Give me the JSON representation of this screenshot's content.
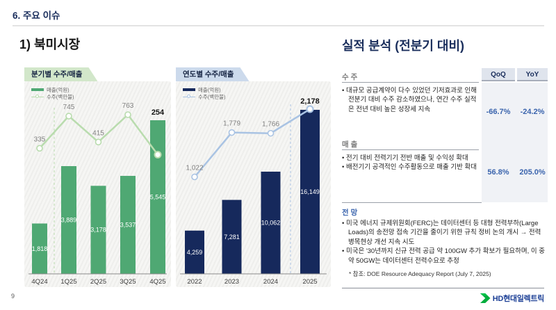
{
  "page": {
    "header_title": "6. 주요 이슈",
    "section_title": "1) 북미시장",
    "page_number": "9",
    "logo_text": "HD현대일렉트릭"
  },
  "colors": {
    "navy_heading": "#1a2e5c",
    "green_bar": "#4fa873",
    "green_line": "#b9dcae",
    "navy_bar": "#16295c",
    "blue_line": "#a9c3e3",
    "accent_blue": "#3a64ad",
    "tab_green_bg": "#d2e7ca",
    "tab_blue_bg": "#ccdaec",
    "logo_green": "#00ad3c",
    "logo_navy": "#1d4096"
  },
  "chart_data": [
    {
      "type": "bar+line",
      "title": "분기별 수주/매출",
      "categories": [
        "4Q24",
        "1Q25",
        "2Q25",
        "3Q25",
        "4Q25"
      ],
      "series": [
        {
          "name": "매출(억원)",
          "type": "bar",
          "values": [
            1818,
            3889,
            3178,
            3537,
            5545
          ],
          "labels": [
            "1,818",
            "3,889",
            "3,178",
            "3,537",
            "5,545"
          ],
          "color": "#4fa873"
        },
        {
          "name": "수주(백만불)",
          "type": "line",
          "values": [
            335,
            745,
            415,
            763,
            254
          ],
          "labels": [
            "335",
            "745",
            "415",
            "763",
            "254"
          ],
          "color": "#b9dcae",
          "marker": "open-circle"
        }
      ],
      "legend_position": "top-left",
      "grid": false,
      "annotations": {
        "dashed_divider_between": [
          "4Q24",
          "1Q25"
        ],
        "last_line_label_bold": true
      }
    },
    {
      "type": "bar+line",
      "title": "연도별 수주/매출",
      "categories": [
        "2022",
        "2023",
        "2024",
        "2025"
      ],
      "series": [
        {
          "name": "매출(억원)",
          "type": "bar",
          "values": [
            4259,
            7281,
            10062,
            16149
          ],
          "labels": [
            "4,259",
            "7,281",
            "10,062",
            "16,149"
          ],
          "color": "#16295c"
        },
        {
          "name": "수주(백만불)",
          "type": "line",
          "values": [
            1022,
            1779,
            1766,
            2178
          ],
          "labels": [
            "1,022",
            "1,779",
            "1,766",
            "2,178"
          ],
          "color": "#a9c3e3",
          "marker": "open-circle"
        }
      ],
      "legend_position": "top-left",
      "grid": false,
      "annotations": {
        "dashed_divider_between": [
          "2024",
          "2025"
        ],
        "last_line_label_bold": true
      }
    }
  ],
  "analysis": {
    "title": "실적 분석 (전분기 대비)",
    "table_headers": [
      "QoQ",
      "YoY"
    ],
    "sections": [
      {
        "label": "수 주",
        "bullets": [
          "대규모 공급계약이 다수 있었던 기저효과로 인해 전분기 대비 수주 감소하였으나, 연간 수주 실적은 전년 대비 높은 성장세 지속"
        ],
        "qoq": "-66.7%",
        "yoy": "-24.2%"
      },
      {
        "label": "매 출",
        "bullets": [
          "전기 대비 전력기기 전반 매출 및 수익성 확대",
          "배전기기 공격적인 수주활동으로 매출 기반 확대"
        ],
        "qoq": "56.8%",
        "yoy": "205.0%"
      },
      {
        "label": "전 망",
        "bullets": [
          "미국 에너지 규제위원회(FERC)는 데이터센터 등 대형 전력부하(Large Loads)의 송전망 접속 기간을 줄이기 위한 규칙 정비 논의 개시 → 전력 병목현상 개선 지속 시도",
          "미국은 '30년까지 신규 전력 공급 약 100GW 추가 확보가 필요하며, 이 중 약 50GW는 데이터센터 전력수요로 추정"
        ],
        "footnote": "* 참조: DOE  Resource Adequacy Report (July 7, 2025)"
      }
    ]
  }
}
